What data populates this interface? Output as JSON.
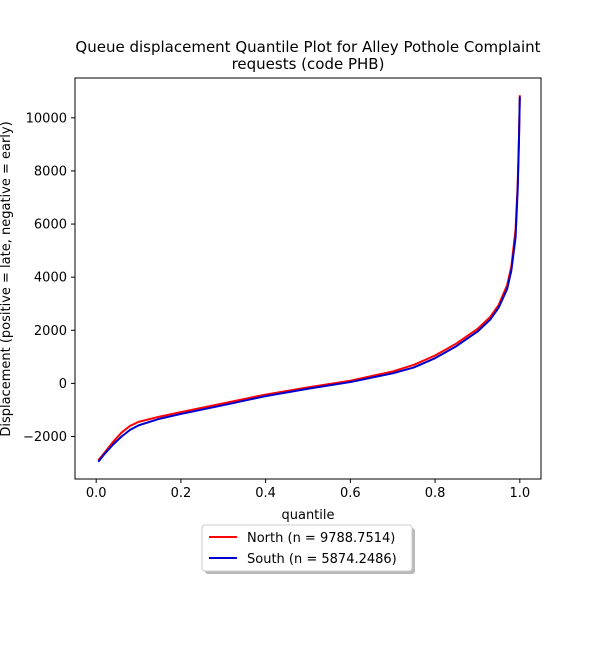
{
  "chart_data": {
    "type": "line",
    "title_line1": "Queue displacement Quantile Plot for Alley Pothole Complaint",
    "title_line2": "requests (code PHB)",
    "xlabel": "quantile",
    "ylabel": "Displacement (positive = late, negative = early)",
    "xlim": [
      -0.05,
      1.05
    ],
    "ylim": [
      -3600,
      11500
    ],
    "xticks": [
      0.0,
      0.2,
      0.4,
      0.6,
      0.8,
      1.0
    ],
    "xtick_labels": [
      "0.0",
      "0.2",
      "0.4",
      "0.6",
      "0.8",
      "1.0"
    ],
    "yticks": [
      -2000,
      0,
      2000,
      4000,
      6000,
      8000,
      10000
    ],
    "ytick_labels": [
      "−2000",
      "0",
      "2000",
      "4000",
      "6000",
      "8000",
      "10000"
    ],
    "legend_position": "below-center",
    "series": [
      {
        "name": "North (n = 9788.7514)",
        "color": "#ff0000",
        "x": [
          0.005,
          0.02,
          0.04,
          0.06,
          0.08,
          0.1,
          0.15,
          0.2,
          0.3,
          0.4,
          0.5,
          0.6,
          0.7,
          0.75,
          0.8,
          0.85,
          0.9,
          0.93,
          0.95,
          0.97,
          0.98,
          0.99,
          0.995,
          0.998,
          1.0
        ],
        "y": [
          -2900,
          -2600,
          -2200,
          -1850,
          -1600,
          -1450,
          -1250,
          -1080,
          -750,
          -420,
          -150,
          100,
          450,
          700,
          1050,
          1500,
          2050,
          2500,
          2950,
          3700,
          4400,
          5800,
          7500,
          9300,
          10850
        ]
      },
      {
        "name": "South (n = 5874.2486)",
        "color": "#0000cc",
        "x": [
          0.005,
          0.02,
          0.04,
          0.06,
          0.08,
          0.1,
          0.15,
          0.2,
          0.3,
          0.4,
          0.5,
          0.6,
          0.7,
          0.75,
          0.8,
          0.85,
          0.9,
          0.93,
          0.95,
          0.97,
          0.98,
          0.99,
          0.995,
          0.998,
          1.0
        ],
        "y": [
          -2950,
          -2650,
          -2300,
          -2000,
          -1750,
          -1580,
          -1330,
          -1150,
          -820,
          -480,
          -200,
          50,
          380,
          600,
          950,
          1400,
          1950,
          2400,
          2850,
          3550,
          4250,
          5500,
          7300,
          9100,
          10800
        ]
      }
    ]
  }
}
